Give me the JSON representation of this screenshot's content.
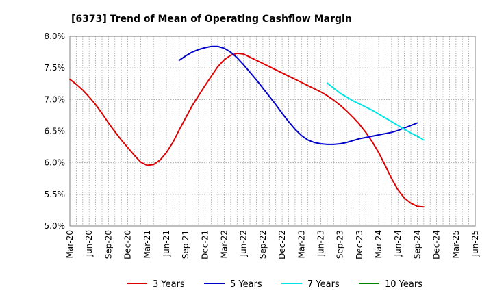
{
  "chart_data": {
    "type": "line",
    "title": "[6373]  Trend of Mean of Operating Cashflow Margin",
    "xlabel": "",
    "ylabel": "",
    "x_ticks": [
      "Mar-20",
      "Jun-20",
      "Sep-20",
      "Dec-20",
      "Mar-21",
      "Jun-21",
      "Sep-21",
      "Dec-21",
      "Mar-22",
      "Jun-22",
      "Sep-22",
      "Dec-22",
      "Mar-23",
      "Jun-23",
      "Sep-23",
      "Dec-23",
      "Mar-24",
      "Jun-24",
      "Sep-24",
      "Dec-24",
      "Mar-25",
      "Jun-25"
    ],
    "y_ticks": [
      "5.0%",
      "5.5%",
      "6.0%",
      "6.5%",
      "7.0%",
      "7.5%",
      "8.0%"
    ],
    "ylim": [
      5.0,
      8.0
    ],
    "grid": true,
    "legend_position": "bottom",
    "x_periods": [
      "Mar-20",
      "Apr-20",
      "May-20",
      "Jun-20",
      "Jul-20",
      "Aug-20",
      "Sep-20",
      "Oct-20",
      "Nov-20",
      "Dec-20",
      "Jan-21",
      "Feb-21",
      "Mar-21",
      "Apr-21",
      "May-21",
      "Jun-21",
      "Jul-21",
      "Aug-21",
      "Sep-21",
      "Oct-21",
      "Nov-21",
      "Dec-21",
      "Jan-22",
      "Feb-22",
      "Mar-22",
      "Apr-22",
      "May-22",
      "Jun-22",
      "Jul-22",
      "Aug-22",
      "Sep-22",
      "Oct-22",
      "Nov-22",
      "Dec-22",
      "Jan-23",
      "Feb-23",
      "Mar-23",
      "Apr-23",
      "May-23",
      "Jun-23",
      "Jul-23",
      "Aug-23",
      "Sep-23",
      "Oct-23",
      "Nov-23",
      "Dec-23",
      "Jan-24",
      "Feb-24",
      "Mar-24",
      "Apr-24",
      "May-24",
      "Jun-24",
      "Jul-24",
      "Aug-24",
      "Sep-24",
      "Oct-24",
      "Nov-24",
      "Dec-24",
      "Jan-25",
      "Feb-25",
      "Mar-25",
      "Apr-25",
      "May-25",
      "Jun-25"
    ],
    "series": [
      {
        "name": "3 Years",
        "color": "#dd0000",
        "values": [
          7.32,
          7.24,
          7.15,
          7.04,
          6.92,
          6.78,
          6.63,
          6.49,
          6.36,
          6.24,
          6.12,
          6.01,
          5.96,
          5.97,
          6.04,
          6.16,
          6.32,
          6.52,
          6.71,
          6.9,
          7.06,
          7.22,
          7.37,
          7.52,
          7.63,
          7.7,
          7.73,
          7.72,
          7.67,
          7.62,
          7.57,
          7.52,
          7.47,
          7.42,
          7.37,
          7.32,
          7.27,
          7.22,
          7.17,
          7.12,
          7.06,
          6.99,
          6.91,
          6.82,
          6.72,
          6.61,
          6.48,
          6.33,
          6.16,
          5.96,
          5.75,
          5.57,
          5.44,
          5.36,
          5.31,
          5.3,
          null,
          null,
          null,
          null,
          null,
          null,
          null,
          null
        ]
      },
      {
        "name": "5 Years",
        "color": "#0000cc",
        "values": [
          null,
          null,
          null,
          null,
          null,
          null,
          null,
          null,
          null,
          null,
          null,
          null,
          null,
          null,
          null,
          null,
          null,
          7.62,
          7.69,
          7.75,
          7.79,
          7.82,
          7.84,
          7.84,
          7.81,
          7.75,
          7.66,
          7.55,
          7.43,
          7.31,
          7.18,
          7.05,
          6.92,
          6.78,
          6.65,
          6.53,
          6.43,
          6.36,
          6.32,
          6.3,
          6.29,
          6.29,
          6.3,
          6.32,
          6.35,
          6.38,
          6.4,
          6.42,
          6.44,
          6.46,
          6.48,
          6.51,
          6.55,
          6.59,
          6.63,
          null,
          null,
          null,
          null,
          null,
          null,
          null,
          null,
          null
        ]
      },
      {
        "name": "7 Years",
        "color": "#00e5e5",
        "values": [
          null,
          null,
          null,
          null,
          null,
          null,
          null,
          null,
          null,
          null,
          null,
          null,
          null,
          null,
          null,
          null,
          null,
          null,
          null,
          null,
          null,
          null,
          null,
          null,
          null,
          null,
          null,
          null,
          null,
          null,
          null,
          null,
          null,
          null,
          null,
          null,
          null,
          null,
          null,
          null,
          7.26,
          7.18,
          7.1,
          7.04,
          6.98,
          6.93,
          6.88,
          6.83,
          6.77,
          6.71,
          6.65,
          6.59,
          6.53,
          6.47,
          6.42,
          6.36,
          null,
          null,
          null,
          null,
          null,
          null,
          null,
          null
        ]
      },
      {
        "name": "10 Years",
        "color": "#008000",
        "values": []
      }
    ]
  }
}
